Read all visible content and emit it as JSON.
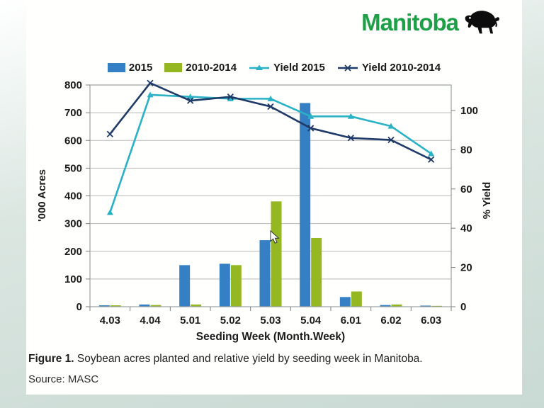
{
  "logo": {
    "text": "Manitoba",
    "text_color": "#1fa048",
    "icon": "bison-icon",
    "icon_color": "#0d0d0d"
  },
  "chart_data": {
    "type": "bar",
    "subtype": "grouped-bars-with-lines-combo",
    "categories": [
      "4.03",
      "4.04",
      "5.01",
      "5.02",
      "5.03",
      "5.04",
      "6.01",
      "6.02",
      "6.03"
    ],
    "bar_series": [
      {
        "name": "2015",
        "color": "#3580c4",
        "axis": "left",
        "values": [
          5,
          8,
          150,
          155,
          240,
          735,
          35,
          6,
          4
        ]
      },
      {
        "name": "2010-2014",
        "color": "#94b722",
        "axis": "left",
        "values": [
          5,
          6,
          8,
          150,
          380,
          248,
          55,
          8,
          3
        ]
      }
    ],
    "line_series": [
      {
        "name": "Yield 2015",
        "color": "#29b2c6",
        "marker": "triangle",
        "axis": "right",
        "values": [
          48,
          108,
          107,
          106,
          106,
          97,
          97,
          92,
          78
        ]
      },
      {
        "name": "Yield 2010-2014",
        "color": "#1f3a68",
        "marker": "x",
        "axis": "right",
        "values": [
          88,
          114,
          105,
          107,
          102,
          91,
          86,
          85,
          75
        ]
      }
    ],
    "left_axis": {
      "label": "'000 Acres",
      "min": 0,
      "max": 800,
      "step": 100,
      "ticks": [
        0,
        100,
        200,
        300,
        400,
        500,
        600,
        700,
        800
      ]
    },
    "right_axis": {
      "label": "% Yield",
      "min": 0,
      "max": 100,
      "step": 20,
      "ticks": [
        0,
        20,
        40,
        60,
        80,
        100
      ]
    },
    "x_axis": {
      "label": "Seeding Week (Month.Week)"
    },
    "grid": true,
    "legend_position": "top",
    "gridline_color": "#b8b8b8",
    "frame_color": "#9aa0a0",
    "tick_text_color": "#1a1a1a"
  },
  "caption": {
    "prefix": "Figure 1.",
    "text": " Soybean acres planted and relative yield by seeding week in Manitoba."
  },
  "source": "Source: MASC"
}
